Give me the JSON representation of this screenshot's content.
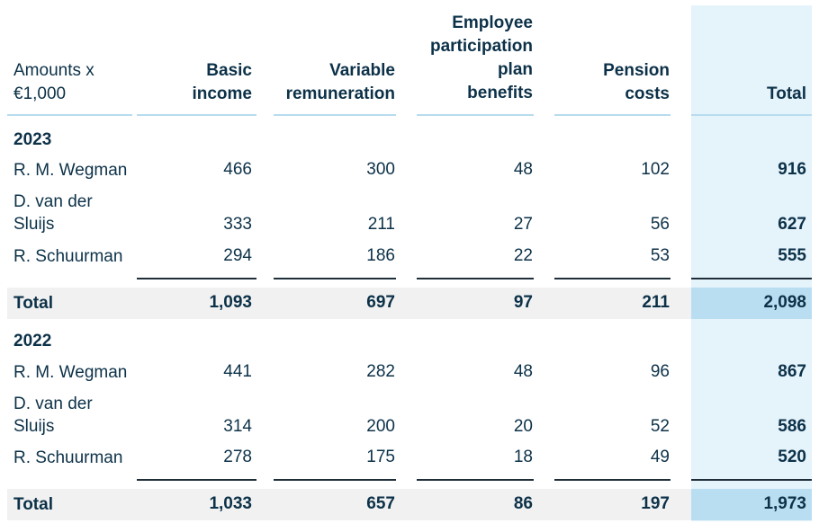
{
  "headers": {
    "amounts": [
      "Amounts x",
      "€1,000"
    ],
    "basic_income": [
      "Basic",
      "income"
    ],
    "variable_remuneration": [
      "Variable",
      "remuneration"
    ],
    "employee_participation": [
      "Employee",
      "participation",
      "plan",
      "benefits"
    ],
    "pension_costs": [
      "Pension",
      "costs"
    ],
    "total": "Total"
  },
  "sections": [
    {
      "year": "2023",
      "rows": [
        {
          "name": [
            "R. M. Wegman"
          ],
          "basic": "466",
          "variable": "300",
          "epp": "48",
          "pension": "102",
          "total": "916"
        },
        {
          "name": [
            "D. van der",
            "Sluijs"
          ],
          "basic": "333",
          "variable": "211",
          "epp": "27",
          "pension": "56",
          "total": "627"
        },
        {
          "name": [
            "R. Schuurman"
          ],
          "basic": "294",
          "variable": "186",
          "epp": "22",
          "pension": "53",
          "total": "555"
        }
      ],
      "total": {
        "label": "Total",
        "basic": "1,093",
        "variable": "697",
        "epp": "97",
        "pension": "211",
        "total": "2,098"
      }
    },
    {
      "year": "2022",
      "rows": [
        {
          "name": [
            "R. M. Wegman"
          ],
          "basic": "441",
          "variable": "282",
          "epp": "48",
          "pension": "96",
          "total": "867"
        },
        {
          "name": [
            "D. van der",
            "Sluijs"
          ],
          "basic": "314",
          "variable": "200",
          "epp": "20",
          "pension": "52",
          "total": "586"
        },
        {
          "name": [
            "R. Schuurman"
          ],
          "basic": "278",
          "variable": "175",
          "epp": "18",
          "pension": "49",
          "total": "520"
        }
      ],
      "total": {
        "label": "Total",
        "basic": "1,033",
        "variable": "657",
        "epp": "86",
        "pension": "197",
        "total": "1,973"
      }
    }
  ],
  "colors": {
    "highlight_column": "#e5f3fb",
    "highlight_total": "#b9def1",
    "total_band": "#f1f1f1",
    "text": "#0c3148"
  }
}
